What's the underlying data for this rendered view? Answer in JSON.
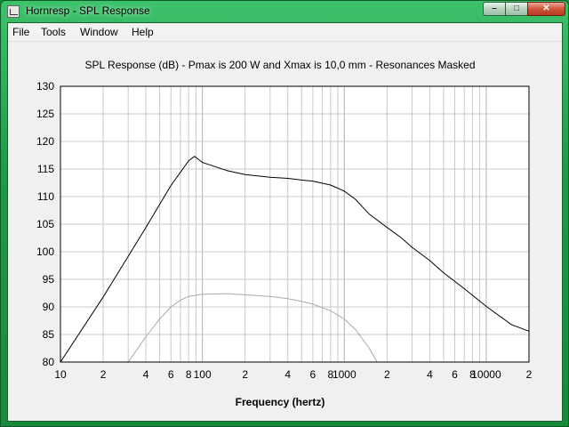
{
  "window": {
    "title": "Hornresp - SPL Response",
    "minimize_glyph": "–",
    "maximize_glyph": "□",
    "close_glyph": "✕",
    "icon": "hornresp-app-icon"
  },
  "menu": {
    "items": [
      "File",
      "Tools",
      "Window",
      "Help"
    ]
  },
  "chart_data": {
    "type": "line",
    "title": "SPL Response (dB) - Pmax is 200 W and Xmax is 10,0 mm - Resonances Masked",
    "xlabel": "Frequency (hertz)",
    "ylabel": "",
    "xscale": "log",
    "xlim": [
      10,
      20000
    ],
    "ylim": [
      80,
      130
    ],
    "yticks": [
      80,
      85,
      90,
      95,
      100,
      105,
      110,
      115,
      120,
      125,
      130
    ],
    "xtick_labels": [
      {
        "value": 10,
        "label": "10"
      },
      {
        "value": 20,
        "label": "2"
      },
      {
        "value": 40,
        "label": "4"
      },
      {
        "value": 60,
        "label": "6"
      },
      {
        "value": 80,
        "label": "8"
      },
      {
        "value": 100,
        "label": "100"
      },
      {
        "value": 200,
        "label": "2"
      },
      {
        "value": 400,
        "label": "4"
      },
      {
        "value": 600,
        "label": "6"
      },
      {
        "value": 800,
        "label": "8"
      },
      {
        "value": 1000,
        "label": "1000"
      },
      {
        "value": 2000,
        "label": "2"
      },
      {
        "value": 4000,
        "label": "4"
      },
      {
        "value": 6000,
        "label": "6"
      },
      {
        "value": 8000,
        "label": "8"
      },
      {
        "value": 10000,
        "label": "10000"
      },
      {
        "value": 20000,
        "label": "2"
      }
    ],
    "grid": true,
    "colors": {
      "series_main": "#000000",
      "series_secondary": "#a8a8a8",
      "grid": "#c8c8c8"
    },
    "series": [
      {
        "color": "#000000",
        "x": [
          10,
          20,
          40,
          60,
          80,
          88,
          100,
          150,
          200,
          300,
          400,
          500,
          600,
          800,
          1000,
          1200,
          1500,
          2000,
          2500,
          3000,
          4000,
          5000,
          7000,
          10000,
          15000,
          20000
        ],
        "y": [
          80,
          91.8,
          104.4,
          112,
          116.5,
          117.3,
          116.2,
          114.7,
          114.0,
          113.5,
          113.3,
          113.0,
          112.8,
          112.1,
          111.0,
          109.5,
          106.8,
          104.4,
          102.6,
          100.8,
          98.4,
          96.2,
          93.3,
          90.1,
          86.8,
          85.6
        ]
      },
      {
        "color": "#a8a8a8",
        "x": [
          30,
          40,
          50,
          60,
          70,
          80,
          100,
          150,
          200,
          300,
          400,
          500,
          600,
          800,
          1000,
          1200,
          1500,
          1700
        ],
        "y": [
          80,
          84.6,
          87.8,
          90.0,
          91.2,
          91.9,
          92.3,
          92.4,
          92.2,
          91.9,
          91.5,
          91.0,
          90.5,
          89.3,
          87.8,
          85.9,
          82.5,
          80
        ]
      }
    ]
  }
}
